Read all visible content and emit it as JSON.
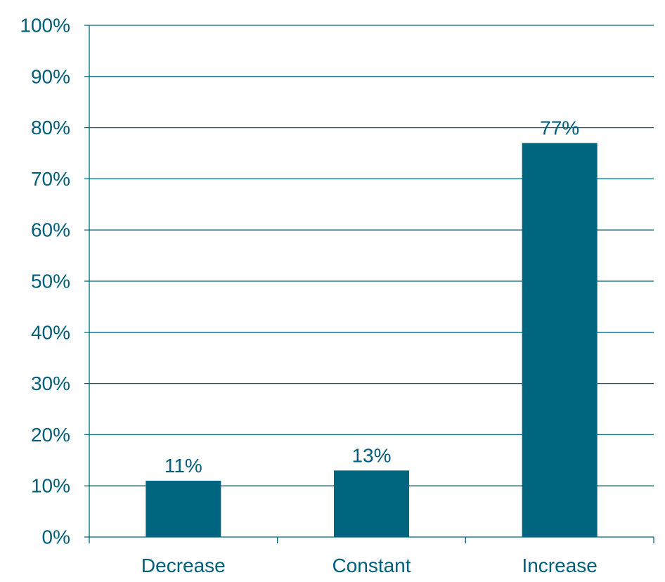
{
  "chart_data": {
    "type": "bar",
    "categories": [
      "Decrease",
      "Constant",
      "Increase"
    ],
    "values": [
      11,
      13,
      77
    ],
    "value_labels": [
      "11%",
      "13%",
      "77%"
    ],
    "ylim": [
      0,
      100
    ],
    "yticks": [
      0,
      10,
      20,
      30,
      40,
      50,
      60,
      70,
      80,
      90,
      100
    ],
    "ytick_labels": [
      "0%",
      "10%",
      "20%",
      "30%",
      "40%",
      "50%",
      "60%",
      "70%",
      "80%",
      "90%",
      "100%"
    ],
    "grid": true,
    "colors": {
      "bar": "#006680",
      "text": "#005f7a",
      "grid": "#006680"
    }
  }
}
